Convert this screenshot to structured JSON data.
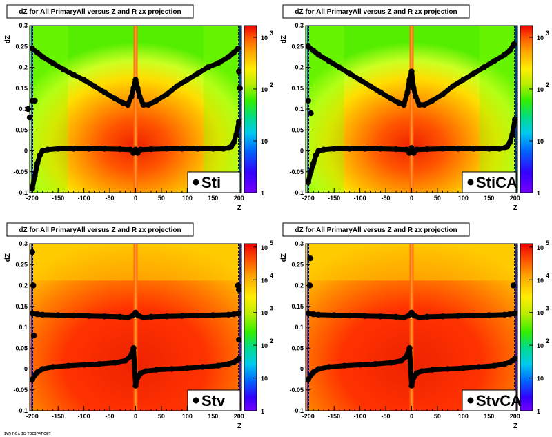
{
  "chart_data": [
    {
      "type": "heatmap",
      "title": "dZ for All PrimaryAll versus Z and R zx projection",
      "xlabel": "Z",
      "ylabel": "dZ",
      "xlim": [
        -205,
        205
      ],
      "ylim": [
        -0.1,
        0.3
      ],
      "x_ticks": [
        "-200",
        "-150",
        "-100",
        "-50",
        "0",
        "50",
        "100",
        "150",
        "200"
      ],
      "y_ticks": [
        "-0.1",
        "-0.05",
        "0",
        "0.05",
        "0.1",
        "0.15",
        "0.2",
        "0.25",
        "0.3"
      ],
      "z_scale": "log",
      "z_ticks": [
        {
          "base": "1",
          "exp": ""
        },
        {
          "base": "10",
          "exp": ""
        },
        {
          "base": "10",
          "exp": "2"
        },
        {
          "base": "10",
          "exp": "3"
        }
      ],
      "legend": "Sti",
      "series": [
        {
          "x": [
            -200,
            -190,
            -180,
            -160,
            -140,
            -120,
            -100,
            -80,
            -60,
            -40,
            -25,
            -15,
            -8,
            -4,
            0,
            4,
            8,
            15,
            25,
            40,
            60,
            80,
            100,
            120,
            140,
            160,
            180,
            190,
            198
          ],
          "y": [
            0.245,
            0.235,
            0.225,
            0.21,
            0.195,
            0.182,
            0.17,
            0.155,
            0.14,
            0.125,
            0.115,
            0.11,
            0.13,
            0.15,
            0.17,
            0.15,
            0.13,
            0.11,
            0.11,
            0.12,
            0.135,
            0.155,
            0.17,
            0.185,
            0.2,
            0.21,
            0.225,
            0.235,
            0.245
          ]
        },
        {
          "x": [
            -200,
            -195,
            -190,
            -185,
            -180,
            -170,
            -150,
            -120,
            -90,
            -60,
            -30,
            -10,
            -4,
            0,
            4,
            10,
            30,
            60,
            90,
            120,
            150,
            170,
            180,
            185,
            190,
            195,
            200
          ],
          "y": [
            -0.09,
            -0.06,
            -0.03,
            -0.01,
            0.0,
            0.003,
            0.005,
            0.005,
            0.005,
            0.005,
            0.004,
            0.003,
            -0.005,
            0.003,
            -0.005,
            0.003,
            0.004,
            0.005,
            0.005,
            0.005,
            0.005,
            0.005,
            0.007,
            0.01,
            0.02,
            0.04,
            0.07
          ]
        },
        {
          "x": [
            -208,
            -205,
            -200,
            -195,
            200,
            202
          ],
          "y": [
            0.1,
            0.08,
            0.12,
            0.12,
            0.19,
            0.15
          ]
        }
      ]
    },
    {
      "type": "heatmap",
      "title": "dZ for All PrimaryAll versus Z and R zx projection",
      "xlabel": "Z",
      "ylabel": "dZ",
      "xlim": [
        -205,
        205
      ],
      "ylim": [
        -0.1,
        0.3
      ],
      "x_ticks": [
        "-200",
        "-150",
        "-100",
        "-50",
        "0",
        "50",
        "100",
        "150",
        "200"
      ],
      "y_ticks": [
        "-0.1",
        "-0.05",
        "0",
        "0.05",
        "0.1",
        "0.15",
        "0.2",
        "0.25",
        "0.3"
      ],
      "z_scale": "log",
      "z_ticks": [
        {
          "base": "1",
          "exp": ""
        },
        {
          "base": "10",
          "exp": ""
        },
        {
          "base": "10",
          "exp": "2"
        },
        {
          "base": "10",
          "exp": "3"
        }
      ],
      "legend": "StiCA",
      "series": [
        {
          "x": [
            -200,
            -190,
            -180,
            -160,
            -140,
            -120,
            -100,
            -80,
            -60,
            -40,
            -25,
            -15,
            -8,
            -4,
            0,
            4,
            8,
            15,
            25,
            40,
            60,
            80,
            100,
            120,
            140,
            160,
            180,
            190,
            198
          ],
          "y": [
            0.25,
            0.24,
            0.23,
            0.215,
            0.2,
            0.185,
            0.17,
            0.155,
            0.14,
            0.125,
            0.115,
            0.11,
            0.14,
            0.17,
            0.19,
            0.15,
            0.13,
            0.11,
            0.11,
            0.12,
            0.135,
            0.155,
            0.17,
            0.185,
            0.2,
            0.215,
            0.23,
            0.24,
            0.255
          ]
        },
        {
          "x": [
            -200,
            -195,
            -190,
            -185,
            -180,
            -170,
            -150,
            -120,
            -90,
            -60,
            -30,
            -10,
            -4,
            0,
            4,
            10,
            30,
            60,
            90,
            120,
            150,
            170,
            180,
            185,
            190,
            195,
            200
          ],
          "y": [
            -0.075,
            -0.05,
            -0.03,
            -0.01,
            0.0,
            0.003,
            0.005,
            0.005,
            0.005,
            0.005,
            0.004,
            0.003,
            -0.005,
            0.007,
            -0.005,
            0.003,
            0.004,
            0.005,
            0.005,
            0.005,
            0.005,
            0.005,
            0.007,
            0.01,
            0.02,
            0.04,
            0.075
          ]
        },
        {
          "x": [
            -200,
            -195
          ],
          "y": [
            0.12,
            0.09
          ]
        }
      ]
    },
    {
      "type": "heatmap",
      "title": "dZ for All PrimaryAll versus Z and R zx projection",
      "xlabel": "Z",
      "ylabel": "dZ",
      "xlim": [
        -205,
        205
      ],
      "ylim": [
        -0.1,
        0.3
      ],
      "x_ticks": [
        "-200",
        "-150",
        "-100",
        "-50",
        "0",
        "50",
        "100",
        "150",
        "200"
      ],
      "y_ticks": [
        "-0.1",
        "-0.05",
        "0",
        "0.05",
        "0.1",
        "0.15",
        "0.2",
        "0.25",
        "0.3"
      ],
      "z_scale": "log",
      "z_ticks": [
        {
          "base": "1",
          "exp": ""
        },
        {
          "base": "10",
          "exp": ""
        },
        {
          "base": "10",
          "exp": "2"
        },
        {
          "base": "10",
          "exp": "3"
        },
        {
          "base": "10",
          "exp": "4"
        },
        {
          "base": "10",
          "exp": "5"
        }
      ],
      "legend": "Stv",
      "series": [
        {
          "x": [
            -200,
            -190,
            -180,
            -150,
            -120,
            -90,
            -60,
            -30,
            -15,
            -5,
            0,
            5,
            15,
            30,
            60,
            90,
            120,
            150,
            180,
            190,
            200
          ],
          "y": [
            0.133,
            0.131,
            0.13,
            0.129,
            0.128,
            0.127,
            0.126,
            0.125,
            0.123,
            0.128,
            0.135,
            0.128,
            0.123,
            0.125,
            0.126,
            0.127,
            0.128,
            0.129,
            0.13,
            0.131,
            0.133
          ]
        },
        {
          "x": [
            -200,
            -195,
            -190,
            -180,
            -160,
            -130,
            -100,
            -70,
            -40,
            -20,
            -10,
            -4,
            0,
            4,
            10,
            20,
            40,
            70,
            100,
            130,
            160,
            180,
            190,
            195,
            200
          ],
          "y": [
            -0.025,
            -0.015,
            -0.008,
            0.0,
            0.005,
            0.008,
            0.01,
            0.012,
            0.015,
            0.02,
            0.03,
            0.05,
            -0.04,
            -0.02,
            -0.01,
            -0.005,
            -0.002,
            0.0,
            0.002,
            0.005,
            0.008,
            0.012,
            0.016,
            0.02,
            0.025
          ]
        },
        {
          "x": [
            -200,
            -198,
            -197,
            198,
            200,
            200,
            198
          ],
          "y": [
            0.28,
            0.2,
            0.08,
            0.2,
            0.19,
            0.07,
            -0.085
          ]
        }
      ]
    },
    {
      "type": "heatmap",
      "title": "dZ for All PrimaryAll versus Z and R zx projection",
      "xlabel": "Z",
      "ylabel": "dZ",
      "xlim": [
        -205,
        205
      ],
      "ylim": [
        -0.1,
        0.3
      ],
      "x_ticks": [
        "-200",
        "-150",
        "-100",
        "-50",
        "0",
        "50",
        "100",
        "150",
        "200"
      ],
      "y_ticks": [
        "-0.1",
        "-0.05",
        "0",
        "0.05",
        "0.1",
        "0.15",
        "0.2",
        "0.25",
        "0.3"
      ],
      "z_scale": "log",
      "z_ticks": [
        {
          "base": "1",
          "exp": ""
        },
        {
          "base": "10",
          "exp": ""
        },
        {
          "base": "10",
          "exp": "2"
        },
        {
          "base": "10",
          "exp": "3"
        },
        {
          "base": "10",
          "exp": "4"
        },
        {
          "base": "10",
          "exp": "5"
        }
      ],
      "legend": "StvCA",
      "series": [
        {
          "x": [
            -200,
            -190,
            -180,
            -150,
            -120,
            -90,
            -60,
            -30,
            -15,
            -5,
            0,
            5,
            15,
            30,
            60,
            90,
            120,
            150,
            180,
            190,
            200
          ],
          "y": [
            0.133,
            0.131,
            0.13,
            0.129,
            0.128,
            0.127,
            0.126,
            0.125,
            0.123,
            0.128,
            0.135,
            0.128,
            0.123,
            0.125,
            0.126,
            0.127,
            0.128,
            0.129,
            0.13,
            0.131,
            0.133
          ]
        },
        {
          "x": [
            -200,
            -195,
            -190,
            -180,
            -160,
            -130,
            -100,
            -70,
            -40,
            -20,
            -10,
            -4,
            0,
            4,
            10,
            20,
            40,
            70,
            100,
            130,
            160,
            180,
            190,
            195,
            200
          ],
          "y": [
            -0.025,
            -0.015,
            -0.008,
            0.0,
            0.005,
            0.008,
            0.01,
            0.012,
            0.015,
            0.02,
            0.03,
            0.05,
            -0.04,
            -0.02,
            -0.01,
            -0.005,
            -0.002,
            0.0,
            0.002,
            0.005,
            0.008,
            0.012,
            0.016,
            0.02,
            0.025
          ]
        },
        {
          "x": [
            -196,
            -197,
            197,
            195
          ],
          "y": [
            0.265,
            0.2,
            0.2,
            -0.085
          ]
        }
      ]
    }
  ],
  "colors": {
    "bg_far": "#ccff33",
    "bg_green": "#66ff00",
    "mid_yellow": "#ffee00",
    "orange": "#ff9900",
    "red_orange": "#ff5500",
    "red": "#ee2200",
    "marker": "#000000"
  },
  "footer_text": "ɪʏʀ ʀɢᴀ ɪɢ ᴛᴏᴄɪᴘᴀᴘᴏᴇᴛ"
}
